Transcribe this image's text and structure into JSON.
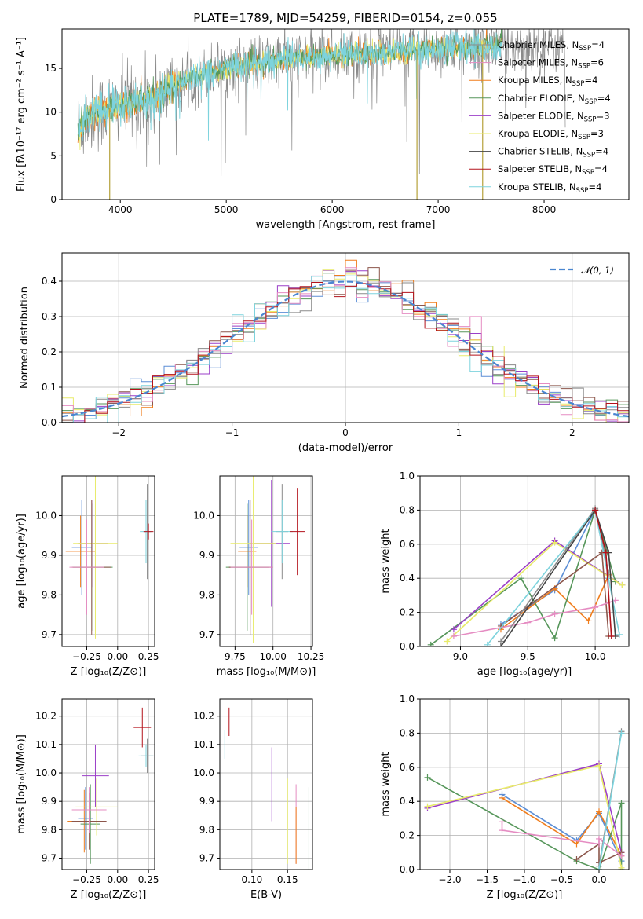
{
  "title": "PLATE=1789, MJD=54259, FIBERID=0154, z=0.055",
  "colors": [
    "#5b8ed6",
    "#f07d1c",
    "#56965a",
    "#9b3fc8",
    "#e8eb6a",
    "#8c564b",
    "#e58cc2",
    "#8a8a8a",
    "#7dd3dd",
    "#b3121b"
  ],
  "legend_models": [
    {
      "label": "Chabrier MILES, N",
      "sub": "SSP",
      "suffix": "=4",
      "color": "#8a8a8a"
    },
    {
      "label": "Salpeter MILES, N",
      "sub": "SSP",
      "suffix": "=6",
      "color": "#e58cc2"
    },
    {
      "label": "Kroupa MILES, N",
      "sub": "SSP",
      "suffix": "=4",
      "color": "#f07d1c"
    },
    {
      "label": "Chabrier ELODIE, N",
      "sub": "SSP",
      "suffix": "=4",
      "color": "#56965a"
    },
    {
      "label": "Salpeter ELODIE, N",
      "sub": "SSP",
      "suffix": "=3",
      "color": "#9b3fc8"
    },
    {
      "label": "Kroupa ELODIE, N",
      "sub": "SSP",
      "suffix": "=3",
      "color": "#e8eb6a"
    },
    {
      "label": "Chabrier STELIB, N",
      "sub": "SSP",
      "suffix": "=4",
      "color": "#444444"
    },
    {
      "label": "Salpeter STELIB, N",
      "sub": "SSP",
      "suffix": "=4",
      "color": "#b3121b"
    },
    {
      "label": "Kroupa STELIB, N",
      "sub": "SSP",
      "suffix": "=4",
      "color": "#7dd3dd"
    }
  ],
  "chart_data": [
    {
      "id": "spectrum",
      "type": "line",
      "xlabel": "wavelength [Angstrom, rest frame]",
      "ylabel": "Flux [fλ10⁻¹⁷ erg cm⁻² s⁻¹ A⁻¹]",
      "xlim": [
        3450,
        8800
      ],
      "ylim": [
        0,
        19.5
      ],
      "xticks": [
        4000,
        5000,
        6000,
        7000,
        8000
      ],
      "yticks": [
        0,
        5,
        10,
        15
      ],
      "continuum": [
        [
          3600,
          8
        ],
        [
          3700,
          9.5
        ],
        [
          3900,
          10.5
        ],
        [
          4100,
          11
        ],
        [
          4300,
          11.5
        ],
        [
          4500,
          13
        ],
        [
          4800,
          14.5
        ],
        [
          5000,
          15
        ],
        [
          5500,
          16
        ],
        [
          6000,
          16.5
        ],
        [
          6500,
          16.8
        ],
        [
          7000,
          17.3
        ],
        [
          7400,
          17.5
        ],
        [
          7600,
          17.6
        ]
      ],
      "data_xrange": [
        3600,
        8200
      ],
      "model_xrange": [
        3600,
        7600
      ],
      "drops": [
        {
          "x": 3900,
          "to": 0
        },
        {
          "x": 6800,
          "to": 0
        },
        {
          "x": 7420,
          "to": 0
        }
      ]
    },
    {
      "id": "residuals",
      "type": "histogram",
      "xlabel": "(data-model)/error",
      "ylabel": "Normed distribution",
      "xlim": [
        -2.5,
        2.5
      ],
      "ylim": [
        0,
        0.48
      ],
      "xticks": [
        -2,
        -1,
        0,
        1,
        2
      ],
      "yticks": [
        0.0,
        0.1,
        0.2,
        0.3,
        0.4
      ],
      "bin_width": 0.1,
      "grid": true,
      "reference_label": "𝒩(0, 1)"
    },
    {
      "id": "age_vs_Z",
      "type": "scatter",
      "xlabel": "Z [log₁₀(Z/Z⊙)]",
      "ylabel": "age  [log₁₀(age/yr)]",
      "xlim": [
        -0.45,
        0.3
      ],
      "ylim": [
        9.67,
        10.1
      ],
      "xticks": [
        -0.25,
        0.0,
        0.25
      ],
      "yticks": [
        9.7,
        9.8,
        9.9,
        10.0
      ],
      "points": [
        {
          "x": -0.29,
          "y": 9.92,
          "xerr": 0.08,
          "yerr": 0.12,
          "color": "#5b8ed6"
        },
        {
          "x": -0.3,
          "y": 9.91,
          "xerr": 0.12,
          "yerr": 0.09,
          "color": "#f07d1c"
        },
        {
          "x": -0.2,
          "y": 9.87,
          "xerr": 0.16,
          "yerr": 0.16,
          "color": "#56965a"
        },
        {
          "x": -0.2,
          "y": 9.93,
          "xerr": 0.12,
          "yerr": 0.11,
          "color": "#9b3fc8"
        },
        {
          "x": -0.18,
          "y": 9.93,
          "xerr": 0.18,
          "yerr": 0.24,
          "color": "#e8eb6a"
        },
        {
          "x": -0.21,
          "y": 9.87,
          "xerr": 0.16,
          "yerr": 0.17,
          "color": "#8c564b"
        },
        {
          "x": -0.25,
          "y": 9.87,
          "xerr": 0.14,
          "yerr": 0.12,
          "color": "#e58cc2"
        },
        {
          "x": 0.24,
          "y": 9.96,
          "xerr": 0.03,
          "yerr": 0.12,
          "color": "#8a8a8a"
        },
        {
          "x": 0.23,
          "y": 9.96,
          "xerr": 0.05,
          "yerr": 0.08,
          "color": "#7dd3dd"
        },
        {
          "x": 0.25,
          "y": 9.96,
          "xerr": 0.04,
          "yerr": 0.02,
          "color": "#b3121b"
        }
      ]
    },
    {
      "id": "age_vs_mass",
      "type": "scatter",
      "xlabel": "mass [log₁₀(M/M⊙)]",
      "ylabel": "",
      "xlim": [
        9.65,
        10.26
      ],
      "ylim": [
        9.67,
        10.1
      ],
      "xticks": [
        9.75,
        10.0,
        10.25
      ],
      "yticks": [
        9.7,
        9.8,
        9.9,
        10.0
      ],
      "points": [
        {
          "x": 9.84,
          "y": 9.92,
          "xerr": 0.06,
          "yerr": 0.12,
          "color": "#5b8ed6"
        },
        {
          "x": 9.83,
          "y": 9.91,
          "xerr": 0.06,
          "yerr": 0.09,
          "color": "#f07d1c"
        },
        {
          "x": 9.83,
          "y": 9.87,
          "xerr": 0.14,
          "yerr": 0.16,
          "color": "#56965a"
        },
        {
          "x": 9.99,
          "y": 9.93,
          "xerr": 0.12,
          "yerr": 0.16,
          "color": "#9b3fc8"
        },
        {
          "x": 9.87,
          "y": 9.93,
          "xerr": 0.15,
          "yerr": 0.25,
          "color": "#e8eb6a"
        },
        {
          "x": 9.85,
          "y": 9.87,
          "xerr": 0.14,
          "yerr": 0.17,
          "color": "#8c564b"
        },
        {
          "x": 9.86,
          "y": 9.87,
          "xerr": 0.14,
          "yerr": 0.12,
          "color": "#e58cc2"
        },
        {
          "x": 10.06,
          "y": 9.96,
          "xerr": 0.04,
          "yerr": 0.12,
          "color": "#8a8a8a"
        },
        {
          "x": 10.06,
          "y": 9.96,
          "xerr": 0.07,
          "yerr": 0.08,
          "color": "#7dd3dd"
        },
        {
          "x": 10.16,
          "y": 9.96,
          "xerr": 0.05,
          "yerr": 0.11,
          "color": "#b3121b"
        }
      ]
    },
    {
      "id": "weights_vs_age",
      "type": "line",
      "xlabel": "age  [log₁₀(age/yr)]",
      "ylabel": "mass weight",
      "xlim": [
        8.7,
        10.25
      ],
      "ylim": [
        0,
        1.0
      ],
      "xticks": [
        9.0,
        9.5,
        10.0
      ],
      "yticks": [
        0.0,
        0.2,
        0.4,
        0.6,
        0.8,
        1.0
      ],
      "series": [
        {
          "color": "#5b8ed6",
          "points": [
            [
              9.3,
              0.13
            ],
            [
              9.7,
              0.33
            ],
            [
              10.0,
              0.8
            ],
            [
              10.1,
              0.4
            ]
          ]
        },
        {
          "color": "#f07d1c",
          "points": [
            [
              9.3,
              0.1
            ],
            [
              9.7,
              0.34
            ],
            [
              9.95,
              0.15
            ],
            [
              10.1,
              0.42
            ]
          ]
        },
        {
          "color": "#56965a",
          "points": [
            [
              8.78,
              0.01
            ],
            [
              9.45,
              0.4
            ],
            [
              9.7,
              0.05
            ],
            [
              10.0,
              0.8
            ],
            [
              10.15,
              0.38
            ]
          ]
        },
        {
          "color": "#9b3fc8",
          "points": [
            [
              8.95,
              0.1
            ],
            [
              9.7,
              0.62
            ],
            [
              10.2,
              0.36
            ]
          ]
        },
        {
          "color": "#e8eb6a",
          "points": [
            [
              8.9,
              0.03
            ],
            [
              9.7,
              0.61
            ],
            [
              10.2,
              0.36
            ]
          ]
        },
        {
          "color": "#8c564b",
          "points": [
            [
              9.3,
              0.12
            ],
            [
              10.05,
              0.55
            ],
            [
              10.1,
              0.06
            ]
          ]
        },
        {
          "color": "#e58cc2",
          "points": [
            [
              8.95,
              0.06
            ],
            [
              9.5,
              0.14
            ],
            [
              9.7,
              0.19
            ],
            [
              10.0,
              0.23
            ],
            [
              10.15,
              0.27
            ]
          ]
        },
        {
          "color": "#8a8a8a",
          "points": [
            [
              9.3,
              0.03
            ],
            [
              10.0,
              0.81
            ],
            [
              10.1,
              0.43
            ]
          ]
        },
        {
          "color": "#7dd3dd",
          "points": [
            [
              9.2,
              0.01
            ],
            [
              10.0,
              0.8
            ],
            [
              10.18,
              0.07
            ]
          ]
        },
        {
          "color": "#444444",
          "points": [
            [
              9.3,
              0.0
            ],
            [
              10.0,
              0.8
            ],
            [
              10.1,
              0.55
            ],
            [
              10.15,
              0.06
            ]
          ]
        },
        {
          "color": "#b3121b",
          "points": [
            [
              10.0,
              0.8
            ],
            [
              10.08,
              0.55
            ],
            [
              10.12,
              0.06
            ]
          ]
        }
      ]
    },
    {
      "id": "mass_vs_Z",
      "type": "scatter",
      "xlabel": "Z [log₁₀(Z/Z⊙)]",
      "ylabel": "mass [log₁₀(M/M⊙)]",
      "xlim": [
        -0.45,
        0.3
      ],
      "ylim": [
        9.66,
        10.26
      ],
      "xticks": [
        -0.25,
        0.0,
        0.25
      ],
      "yticks": [
        9.7,
        9.8,
        9.9,
        10.0,
        10.1,
        10.2
      ],
      "points": [
        {
          "x": -0.26,
          "y": 9.84,
          "xerr": 0.06,
          "yerr": 0.11,
          "color": "#5b8ed6"
        },
        {
          "x": -0.27,
          "y": 9.83,
          "xerr": 0.14,
          "yerr": 0.11,
          "color": "#f07d1c"
        },
        {
          "x": -0.22,
          "y": 9.82,
          "xerr": 0.08,
          "yerr": 0.14,
          "color": "#56965a"
        },
        {
          "x": -0.18,
          "y": 9.99,
          "xerr": 0.11,
          "yerr": 0.11,
          "color": "#9b3fc8"
        },
        {
          "x": -0.17,
          "y": 9.88,
          "xerr": 0.17,
          "yerr": 0.1,
          "color": "#e8eb6a"
        },
        {
          "x": -0.23,
          "y": 9.83,
          "xerr": 0.14,
          "yerr": 0.1,
          "color": "#8c564b"
        },
        {
          "x": -0.23,
          "y": 9.87,
          "xerr": 0.14,
          "yerr": 0.08,
          "color": "#e58cc2"
        },
        {
          "x": 0.24,
          "y": 10.06,
          "xerr": 0.05,
          "yerr": 0.06,
          "color": "#8a8a8a"
        },
        {
          "x": 0.23,
          "y": 10.06,
          "xerr": 0.06,
          "yerr": 0.04,
          "color": "#7dd3dd"
        },
        {
          "x": 0.2,
          "y": 10.16,
          "xerr": 0.07,
          "yerr": 0.07,
          "color": "#b3121b"
        }
      ]
    },
    {
      "id": "mass_vs_ebv",
      "type": "scatter",
      "xlabel": "E(B-V)",
      "ylabel": "",
      "xlim": [
        0.055,
        0.185
      ],
      "ylim": [
        9.66,
        10.26
      ],
      "xticks": [
        0.1,
        0.15
      ],
      "yticks": [
        9.7,
        9.8,
        9.9,
        10.0,
        10.1,
        10.2
      ],
      "points": [
        {
          "x": 0.062,
          "y": 10.1,
          "xerr": 0,
          "yerr": 0.05,
          "color": "#7dd3dd"
        },
        {
          "x": 0.068,
          "y": 10.18,
          "xerr": 0,
          "yerr": 0.05,
          "color": "#b3121b"
        },
        {
          "x": 0.128,
          "y": 9.96,
          "xerr": 0,
          "yerr": 0.13,
          "color": "#9b3fc8"
        },
        {
          "x": 0.15,
          "y": 9.83,
          "xerr": 0,
          "yerr": 0.15,
          "color": "#e8eb6a"
        },
        {
          "x": 0.162,
          "y": 9.82,
          "xerr": 0,
          "yerr": 0.14,
          "color": "#e58cc2"
        },
        {
          "x": 0.162,
          "y": 9.78,
          "xerr": 0,
          "yerr": 0.1,
          "color": "#f07d1c"
        },
        {
          "x": 0.18,
          "y": 9.8,
          "xerr": 0,
          "yerr": 0.15,
          "color": "#56965a"
        }
      ]
    },
    {
      "id": "weights_vs_Z",
      "type": "line",
      "xlabel": "Z [log₁₀(Z/Z⊙)]",
      "ylabel": "mass weight",
      "xlim": [
        -2.4,
        0.4
      ],
      "ylim": [
        0,
        1.0
      ],
      "xticks": [
        -2.0,
        -1.5,
        -1.0,
        -0.5,
        0.0
      ],
      "yticks": [
        0.0,
        0.2,
        0.4,
        0.6,
        0.8,
        1.0
      ],
      "series": [
        {
          "color": "#5b8ed6",
          "points": [
            [
              -1.3,
              0.44
            ],
            [
              -0.3,
              0.17
            ],
            [
              0.0,
              0.33
            ],
            [
              0.3,
              0.05
            ]
          ]
        },
        {
          "color": "#f07d1c",
          "points": [
            [
              -1.3,
              0.42
            ],
            [
              -0.3,
              0.15
            ],
            [
              0.0,
              0.34
            ],
            [
              0.3,
              0.08
            ]
          ]
        },
        {
          "color": "#56965a",
          "points": [
            [
              -2.3,
              0.54
            ],
            [
              -0.3,
              0.05
            ],
            [
              0.0,
              0.0
            ],
            [
              0.3,
              0.39
            ],
            [
              0.3,
              0.0
            ]
          ]
        },
        {
          "color": "#9b3fc8",
          "points": [
            [
              -2.3,
              0.36
            ],
            [
              0.0,
              0.62
            ],
            [
              0.3,
              0.1
            ]
          ]
        },
        {
          "color": "#e8eb6a",
          "points": [
            [
              -2.3,
              0.37
            ],
            [
              0.0,
              0.61
            ],
            [
              0.3,
              0.01
            ]
          ]
        },
        {
          "color": "#8c564b",
          "points": [
            [
              -0.3,
              0.06
            ],
            [
              0.0,
              0.15
            ],
            [
              0.0,
              0.04
            ],
            [
              0.3,
              0.1
            ]
          ]
        },
        {
          "color": "#e58cc2",
          "points": [
            [
              -1.3,
              0.28
            ],
            [
              -1.3,
              0.23
            ],
            [
              0.0,
              0.15
            ],
            [
              0.0,
              0.18
            ],
            [
              0.3,
              0.08
            ]
          ]
        },
        {
          "color": "#8a8a8a",
          "points": [
            [
              0.0,
              0.02
            ],
            [
              0.3,
              0.81
            ]
          ]
        },
        {
          "color": "#7dd3dd",
          "points": [
            [
              0.0,
              0.0
            ],
            [
              0.3,
              0.8
            ]
          ]
        }
      ]
    }
  ]
}
